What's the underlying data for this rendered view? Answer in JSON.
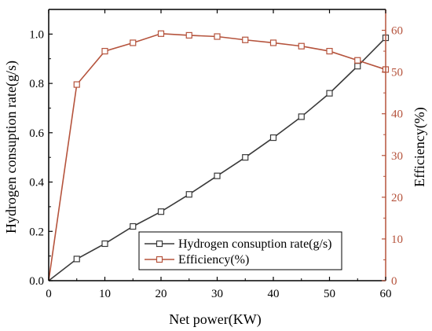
{
  "chart_data": {
    "type": "line",
    "title": "",
    "xlabel": "Net power(KW)",
    "ylabel_left": "Hydrogen consuption rate(g/s)",
    "ylabel_right": "Efficiency(%)",
    "xlim": [
      0,
      60
    ],
    "ylim_left": [
      0,
      1.1
    ],
    "ylim_right": [
      0,
      65
    ],
    "x_ticks": [
      0,
      10,
      20,
      30,
      40,
      50,
      60
    ],
    "y_left_ticks": [
      0.0,
      0.2,
      0.4,
      0.6,
      0.8,
      1.0
    ],
    "y_right_ticks": [
      0,
      10,
      20,
      30,
      40,
      50,
      60
    ],
    "grid": false,
    "legend_position": "bottom-center",
    "colors": {
      "hydrogen": "#3a3a3a",
      "efficiency": "#b5533c"
    },
    "series": [
      {
        "name": "Hydrogen consuption rate(g/s)",
        "axis": "left",
        "x": [
          0,
          5,
          10,
          15,
          20,
          25,
          30,
          35,
          40,
          45,
          50,
          55,
          60
        ],
        "values": [
          0.0,
          0.088,
          0.15,
          0.22,
          0.28,
          0.35,
          0.425,
          0.5,
          0.58,
          0.665,
          0.76,
          0.87,
          0.985
        ]
      },
      {
        "name": "Efficiency(%)",
        "axis": "right",
        "x": [
          0,
          5,
          10,
          15,
          20,
          25,
          30,
          35,
          40,
          45,
          50,
          55,
          60
        ],
        "values": [
          0,
          47,
          55,
          57,
          59.2,
          58.8,
          58.5,
          57.7,
          57,
          56.2,
          55,
          52.8,
          50.6
        ]
      }
    ]
  }
}
